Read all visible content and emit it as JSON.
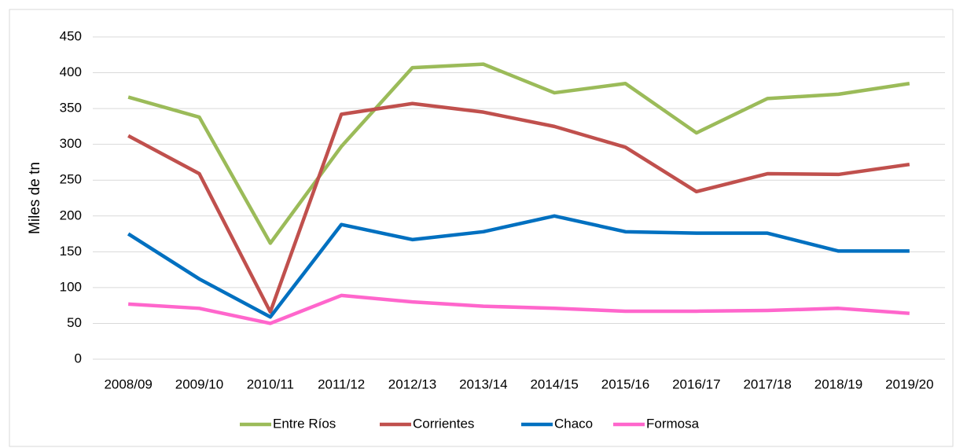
{
  "chart_data": {
    "type": "line",
    "ylabel": "Miles de tn",
    "categories": [
      "2008/09",
      "2009/10",
      "2010/11",
      "2011/12",
      "2012/13",
      "2013/14",
      "2014/15",
      "2015/16",
      "2016/17",
      "2017/18",
      "2018/19",
      "2019/20"
    ],
    "series": [
      {
        "name": "Entre Ríos",
        "color": "#9bbb59",
        "values": [
          366,
          338,
          162,
          297,
          407,
          412,
          372,
          385,
          316,
          364,
          370,
          385
        ]
      },
      {
        "name": "Corrientes",
        "color": "#c0504d",
        "values": [
          312,
          259,
          66,
          342,
          357,
          345,
          325,
          296,
          234,
          259,
          258,
          272
        ]
      },
      {
        "name": "Chaco",
        "color": "#0070c0",
        "values": [
          175,
          112,
          59,
          188,
          167,
          178,
          200,
          178,
          176,
          176,
          151,
          151
        ]
      },
      {
        "name": "Formosa",
        "color": "#ff66cc",
        "values": [
          77,
          71,
          50,
          89,
          80,
          74,
          71,
          67,
          67,
          68,
          71,
          64
        ]
      }
    ],
    "ylim": [
      0,
      450
    ],
    "yticks": [
      0,
      50,
      100,
      150,
      200,
      250,
      300,
      350,
      400,
      450
    ],
    "grid": true,
    "legend": "bottom"
  }
}
